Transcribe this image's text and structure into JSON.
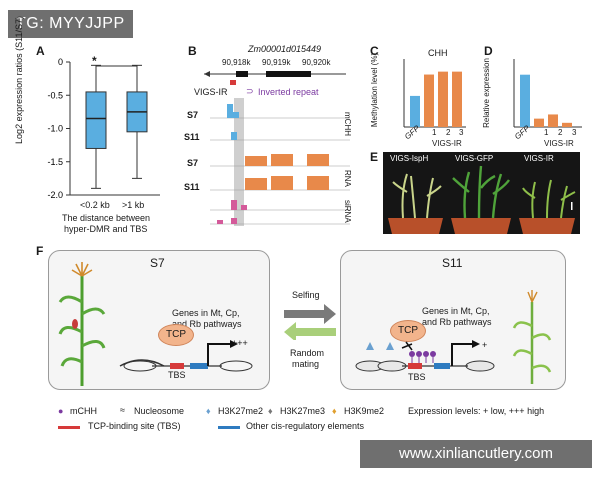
{
  "watermark_top": "TG: MYYJJPP",
  "watermark_bottom": "www.xinliancutlery.com",
  "panels": {
    "a": "A",
    "b": "B",
    "c": "C",
    "d": "D",
    "e": "E",
    "f": "F"
  },
  "panel_a": {
    "ylabel": "Log2 expression ratios (S11/S7)",
    "yticks": [
      "0",
      "-0.5",
      "-1.0",
      "-1.5",
      "-2.0"
    ],
    "categories": [
      "<0.2 kb",
      ">1 kb"
    ],
    "xlabel_line1": "The distance between",
    "xlabel_line2": "hyper-DMR and TBS",
    "significance": "*"
  },
  "panel_b": {
    "gene": "Zm00001d015449",
    "coords": [
      "90,918k",
      "90,919k",
      "90,920k"
    ],
    "vigs_label": "VIGS-IR",
    "inverted_repeat": "Inverted repeat",
    "tracks": [
      "S7",
      "S11",
      "S7",
      "S11",
      "S7",
      "S11"
    ],
    "track_types": [
      "mCHH",
      "RNA",
      "siRNA"
    ]
  },
  "panel_c": {
    "title": "CHH",
    "ylabel": "Methylation level (%)",
    "yticks": [
      "0",
      "20",
      "40",
      "60"
    ],
    "xlabels": [
      "GFP",
      "1",
      "2",
      "3"
    ],
    "group_label": "VIGS-IR"
  },
  "panel_d": {
    "ylabel": "Relative expression",
    "yticks": [
      "0",
      "0.5",
      "1.0"
    ],
    "xlabels": [
      "GFP",
      "1",
      "2",
      "3"
    ],
    "group_label": "VIGS-IR"
  },
  "panel_e": {
    "labels": [
      "VIGS-IspH",
      "VIGS-GFP",
      "VIGS-IR"
    ]
  },
  "panel_f": {
    "s7": "S7",
    "s11": "S11",
    "selfing": "Selfing",
    "random_line1": "Random",
    "random_line2": "mating",
    "genes_line1": "Genes in Mt, Cp,",
    "genes_line2": "and Rb pathways",
    "tcp": "TCP",
    "tbs": "TBS",
    "high": "+++",
    "low": "+"
  },
  "legend": {
    "mchh": "mCHH",
    "nucleosome": "Nucleosome",
    "h3k27me2": "H3K27me2",
    "h3k27me3": "H3K27me3",
    "h3k9me2": "H3K9me2",
    "expression": "Expression levels: + low, +++ high",
    "tcp_site": "TCP-binding site (TBS)",
    "other": "Other cis-regulatory elements"
  },
  "colors": {
    "blue": "#5aaee0",
    "orange": "#e8894a",
    "purple": "#7b3aa0",
    "red": "#d63a3a"
  },
  "chart_data": [
    {
      "type": "bar",
      "title": "CHH",
      "ylabel": "Methylation level (%)",
      "categories": [
        "GFP",
        "1",
        "2",
        "3"
      ],
      "values": [
        32,
        54,
        57,
        57
      ],
      "ylim": [
        0,
        70
      ]
    },
    {
      "type": "bar",
      "ylabel": "Relative expression",
      "categories": [
        "GFP",
        "1",
        "2",
        "3"
      ],
      "values": [
        1.0,
        0.16,
        0.24,
        0.08
      ],
      "ylim": [
        0,
        1.3
      ]
    },
    {
      "type": "box",
      "ylabel": "Log2 expression ratios (S11/S7)",
      "categories": [
        "<0.2 kb",
        ">1 kb"
      ],
      "boxes": [
        {
          "q1": -1.3,
          "median": -0.85,
          "q3": -0.45,
          "min": -1.9,
          "max": -0.05
        },
        {
          "q1": -1.05,
          "median": -0.75,
          "q3": -0.45,
          "min": -1.75,
          "max": -0.05
        }
      ],
      "ylim": [
        -2.0,
        0
      ]
    }
  ]
}
